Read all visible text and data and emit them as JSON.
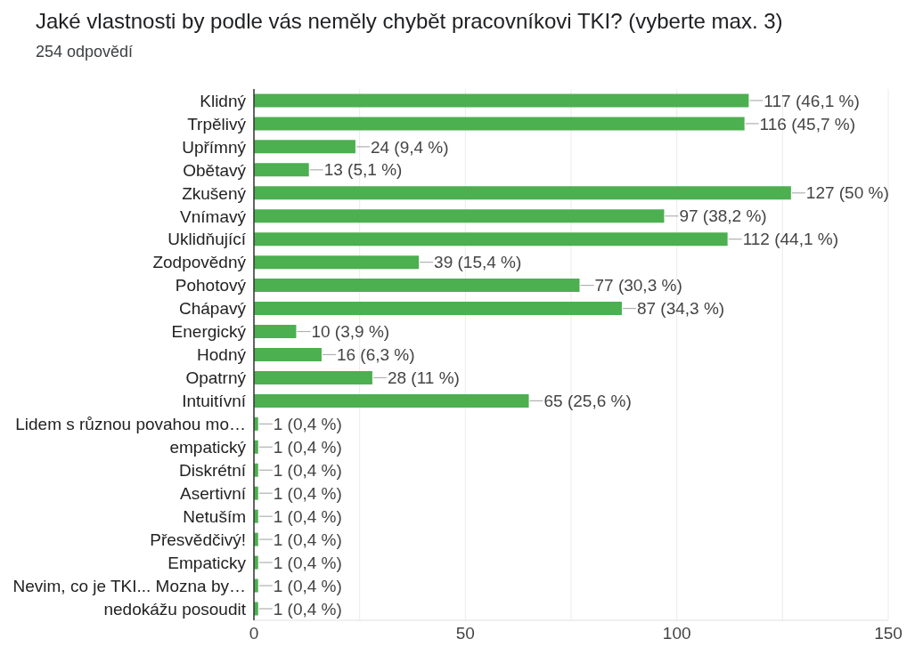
{
  "chart_data": {
    "type": "bar",
    "orientation": "horizontal",
    "title": "Jaké vlastnosti by podle vás neměly chybět pracovníkovi TKI? (vyberte max. 3)",
    "subtitle": "254 odpovědí",
    "categories": [
      "Klidný",
      "Trpělivý",
      "Upřímný",
      "Obětavý",
      "Zkušený",
      "Vnímavý",
      "Uklidňující",
      "Zodpovědný",
      "Pohotový",
      "Chápavý",
      "Energický",
      "Hodný",
      "Opatrný",
      "Intuitívní",
      "Lidem s různou povahou mo…",
      "empatický",
      "Diskrétní",
      "Asertivní",
      "Netuším",
      "Přesvědčivý!",
      "Empaticky",
      "Nevim, co je TKI... Mozna by…",
      "nedokážu posoudit"
    ],
    "values": [
      117,
      116,
      24,
      13,
      127,
      97,
      112,
      39,
      77,
      87,
      10,
      16,
      28,
      65,
      1,
      1,
      1,
      1,
      1,
      1,
      1,
      1,
      1
    ],
    "value_labels": [
      "117 (46,1 %)",
      "116 (45,7 %)",
      "24 (9,4 %)",
      "13 (5,1 %)",
      "127 (50 %)",
      "97 (38,2 %)",
      "112 (44,1 %)",
      "39 (15,4 %)",
      "77 (30,3 %)",
      "87 (34,3 %)",
      "10 (3,9 %)",
      "16 (6,3 %)",
      "28 (11 %)",
      "65 (25,6 %)",
      "1 (0,4 %)",
      "1 (0,4 %)",
      "1 (0,4 %)",
      "1 (0,4 %)",
      "1 (0,4 %)",
      "1 (0,4 %)",
      "1 (0,4 %)",
      "1 (0,4 %)",
      "1 (0,4 %)"
    ],
    "color": "#4caf50",
    "xlim": [
      0,
      150
    ],
    "xticks": [
      0,
      {
        "value": 25,
        "label": null
      },
      50,
      {
        "value": 75,
        "label": null
      },
      100,
      {
        "value": 125,
        "label": null
      },
      150
    ],
    "grid": "x"
  }
}
